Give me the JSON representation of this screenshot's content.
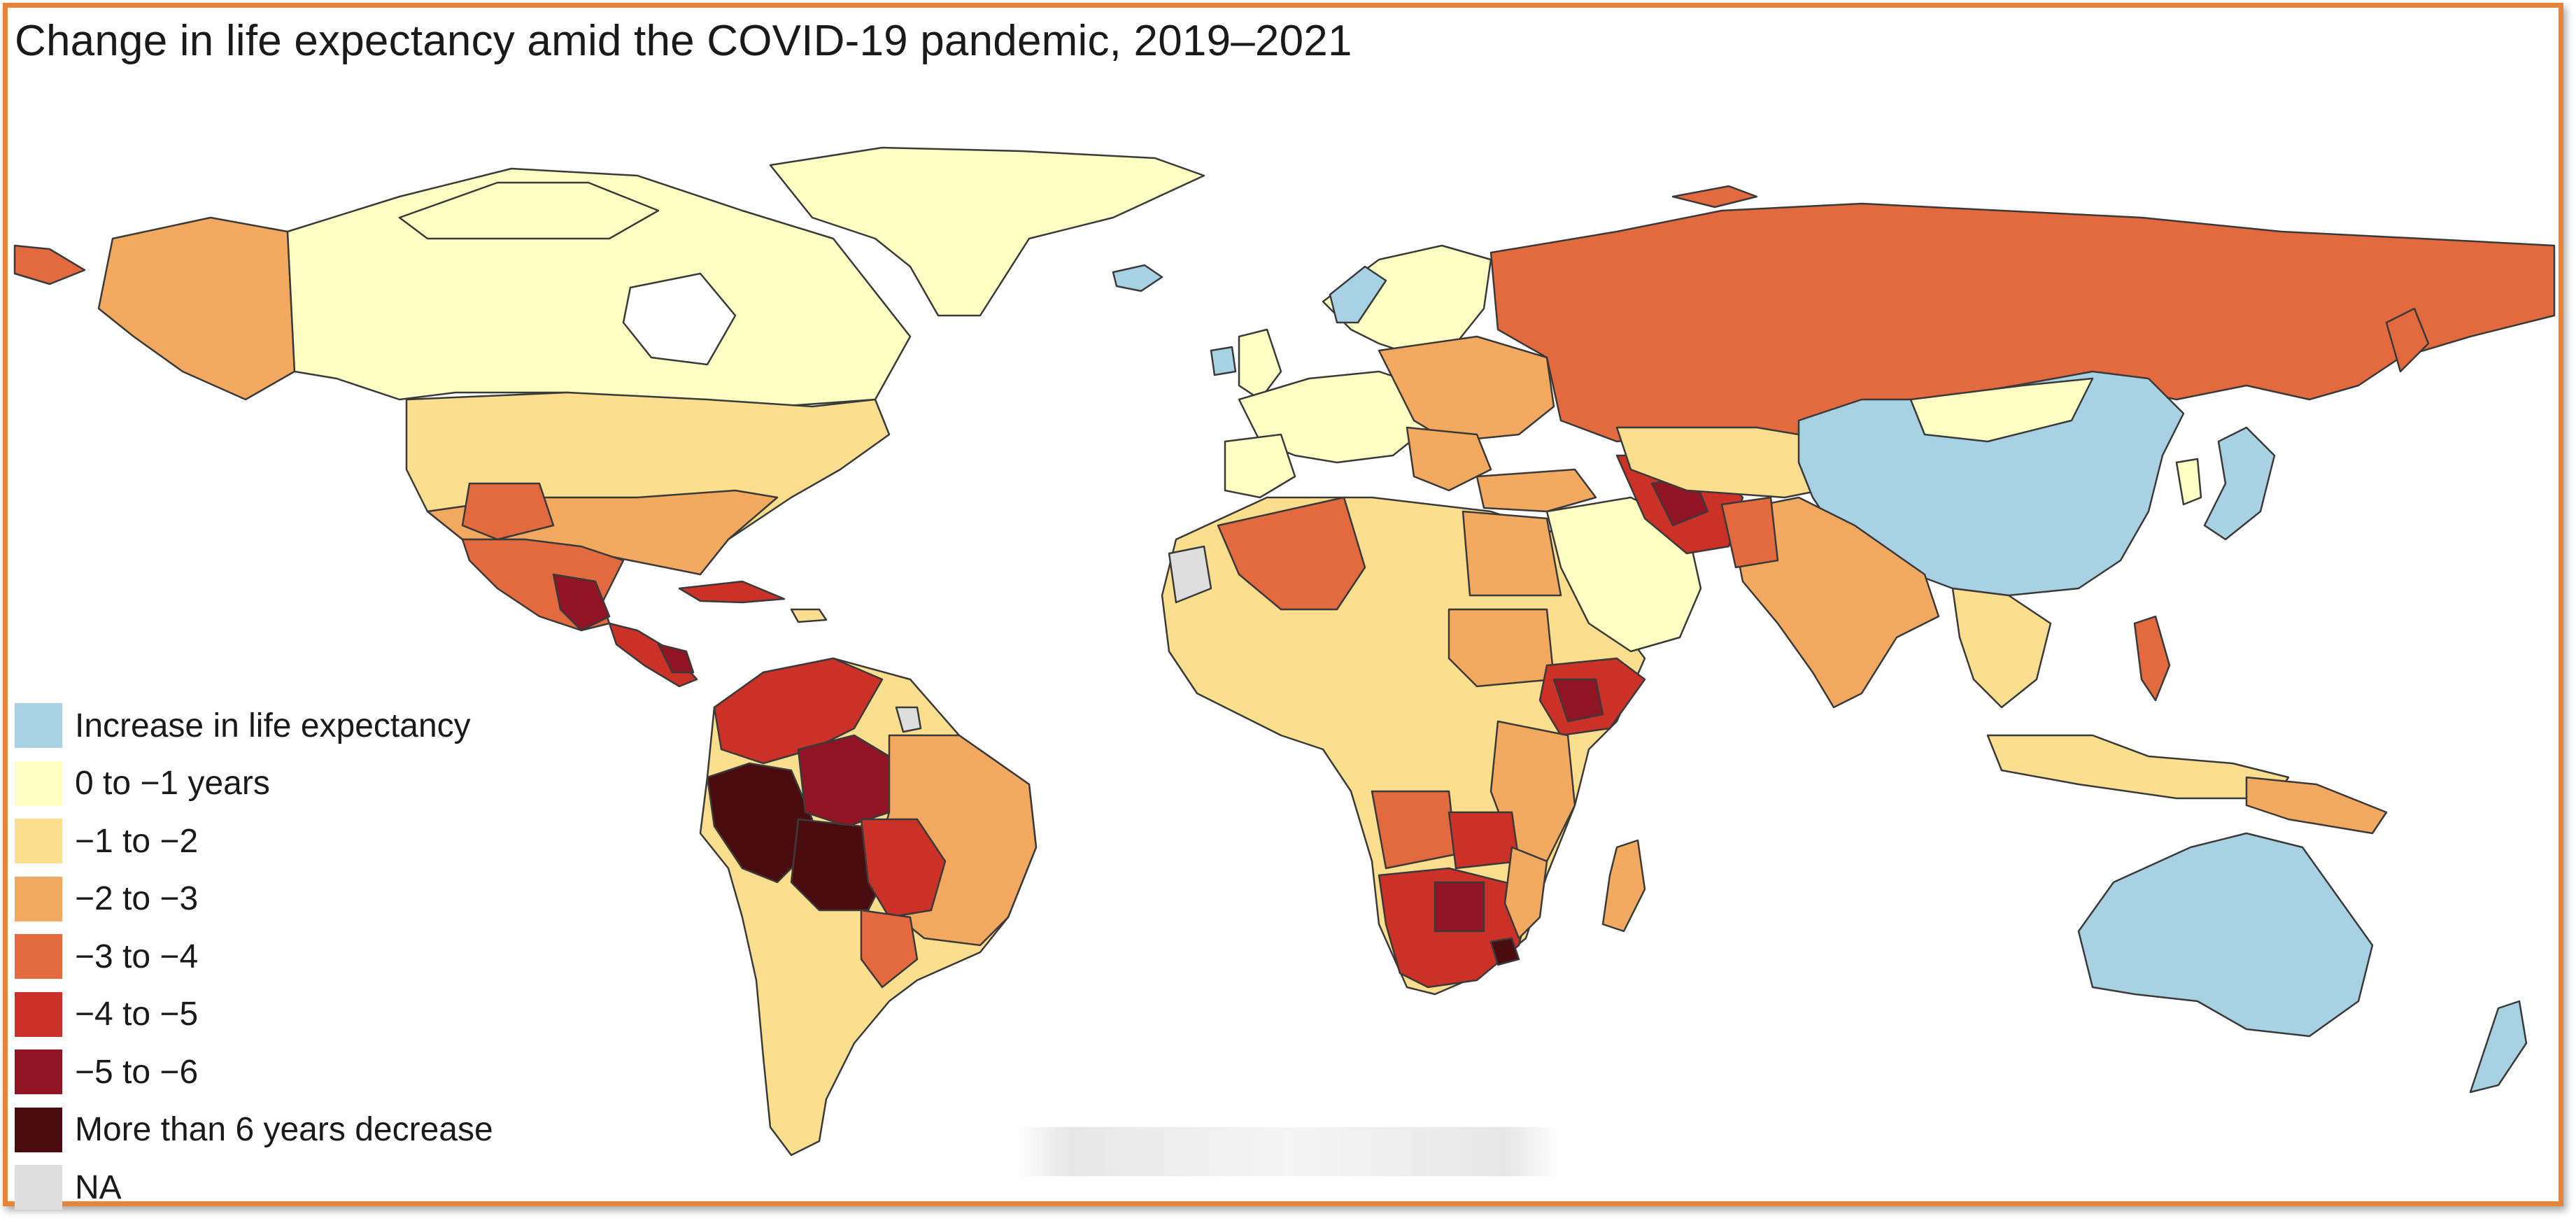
{
  "title": "Change in life expectancy amid the COVID-19 pandemic, 2019–2021",
  "legend": [
    {
      "label": "Increase in life expectancy",
      "color": "#a8d2e3"
    },
    {
      "label": "0 to −1 years",
      "color": "#ffffc4"
    },
    {
      "label": "−1 to −2",
      "color": "#fbdf8f"
    },
    {
      "label": "−2 to −3",
      "color": "#f3a95f"
    },
    {
      "label": "−3 to −4",
      "color": "#e36a3e"
    },
    {
      "label": "−4 to −5",
      "color": "#cc3128"
    },
    {
      "label": "−5 to −6",
      "color": "#901424"
    },
    {
      "label": "More than 6 years decrease",
      "color": "#4a0b0f"
    },
    {
      "label": "NA",
      "color": "#dedede"
    }
  ],
  "colors": {
    "border": "#e8843a",
    "outline": "#3a3a3a"
  }
}
